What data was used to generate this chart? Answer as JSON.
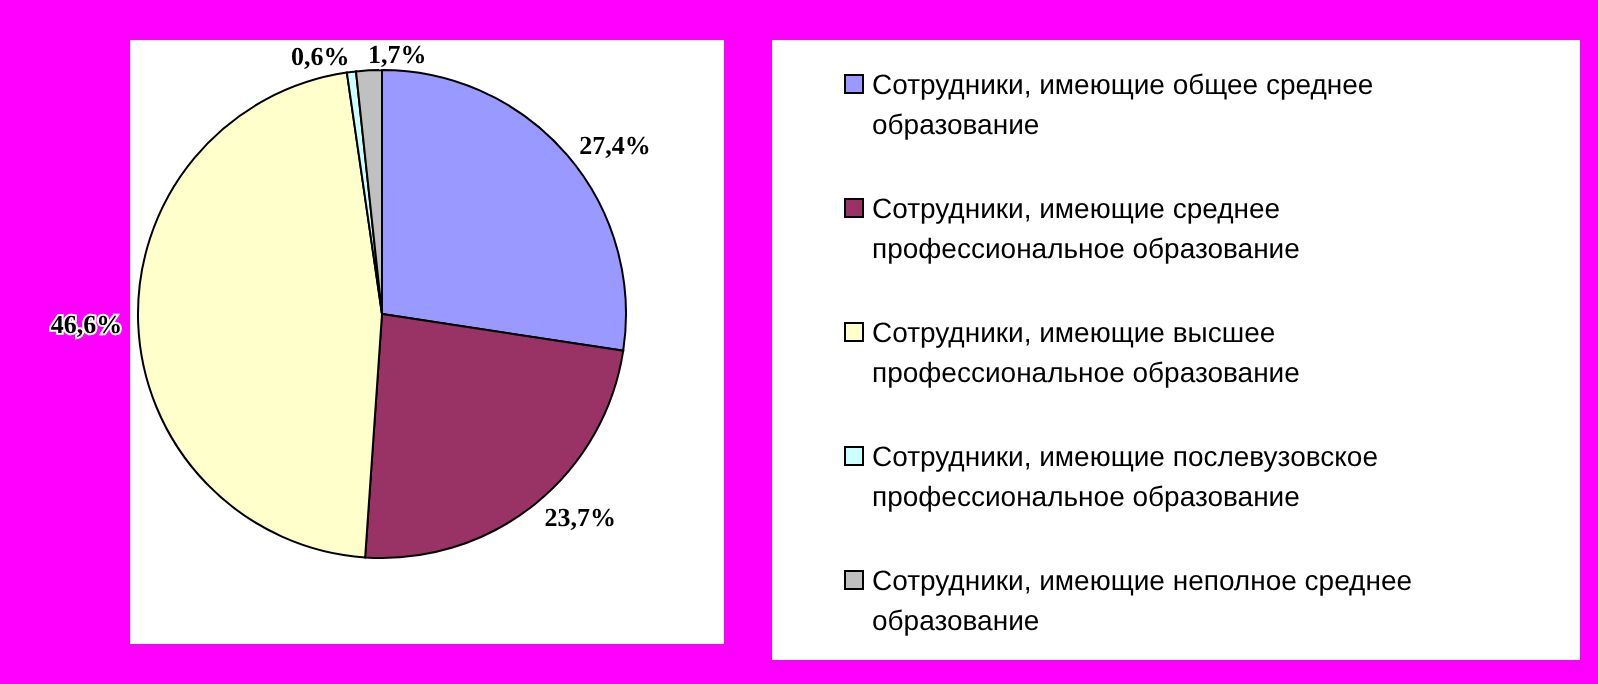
{
  "chart_data": {
    "type": "pie",
    "categories": [
      "Сотрудники, имеющие общее среднее образование",
      "Сотрудники, имеющие среднее профессиональное образование",
      "Сотрудники, имеющие высшее профессиональное образование",
      "Сотрудники, имеющие послевузовское профессиональное образование",
      "Сотрудники, имеющие неполное среднее образование"
    ],
    "values": [
      27.4,
      23.7,
      46.6,
      0.6,
      1.7
    ],
    "value_labels": [
      "27,4%",
      "23,7%",
      "46,6%",
      "0,6%",
      "1,7%"
    ],
    "colors": [
      "#9999ff",
      "#993366",
      "#ffffcc",
      "#ccffff",
      "#c0c0c0"
    ],
    "legend": "right"
  }
}
